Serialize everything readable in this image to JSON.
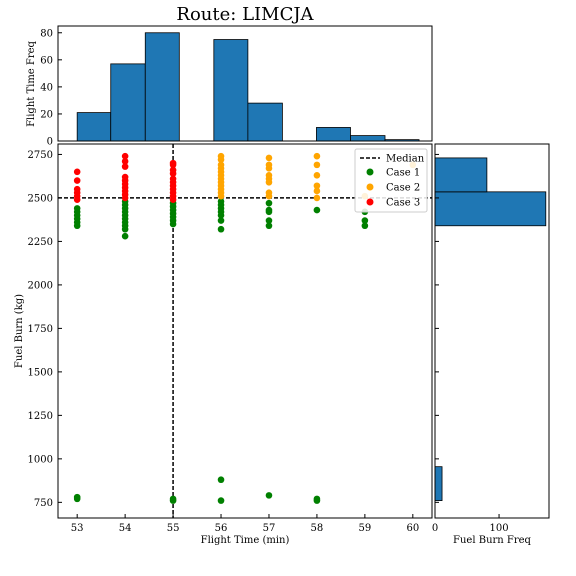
{
  "chart_data": [
    {
      "panel": "top-histogram",
      "type": "bar",
      "title": "Route: LIMCJA",
      "xlabel": "",
      "ylabel": "Flight Time Freq",
      "ylim": [
        0,
        85
      ],
      "yticks": [
        0,
        20,
        40,
        60,
        80
      ],
      "bar_color": "#1f77b4",
      "bins": [
        {
          "x0": 53.0,
          "x1": 53.7,
          "value": 21
        },
        {
          "x0": 53.7,
          "x1": 54.42,
          "value": 57
        },
        {
          "x0": 54.42,
          "x1": 55.13,
          "value": 80
        },
        {
          "x0": 55.13,
          "x1": 55.85,
          "value": 0
        },
        {
          "x0": 55.85,
          "x1": 56.56,
          "value": 75
        },
        {
          "x0": 56.56,
          "x1": 57.28,
          "value": 28
        },
        {
          "x0": 57.28,
          "x1": 57.99,
          "value": 0
        },
        {
          "x0": 57.99,
          "x1": 58.7,
          "value": 10
        },
        {
          "x0": 58.7,
          "x1": 59.42,
          "value": 4
        },
        {
          "x0": 59.42,
          "x1": 60.13,
          "value": 1
        }
      ]
    },
    {
      "panel": "main-scatter",
      "type": "scatter",
      "xlabel": "Flight Time (min)",
      "ylabel": "Fuel Burn (kg)",
      "xlim": [
        52.6,
        60.4
      ],
      "ylim": [
        660,
        2810
      ],
      "xticks": [
        53,
        54,
        55,
        56,
        57,
        58,
        59,
        60
      ],
      "yticks": [
        750,
        1000,
        1250,
        1500,
        1750,
        2000,
        2250,
        2500,
        2750
      ],
      "median_x": 55,
      "median_y": 2500,
      "legend_position": "top-right",
      "legend": [
        {
          "label": "Median",
          "kind": "line",
          "color": "#000000"
        },
        {
          "label": "Case 1",
          "kind": "marker",
          "color": "#008000"
        },
        {
          "label": "Case 2",
          "kind": "marker",
          "color": "#ffa500"
        },
        {
          "label": "Case 3",
          "kind": "marker",
          "color": "#ff0000"
        }
      ],
      "series": [
        {
          "name": "Case 1",
          "color": "#008000",
          "points": [
            [
              53,
              780
            ],
            [
              53,
              770
            ],
            [
              53,
              2340
            ],
            [
              53,
              2360
            ],
            [
              53,
              2380
            ],
            [
              53,
              2400
            ],
            [
              53,
              2420
            ],
            [
              53,
              2440
            ],
            [
              54,
              2280
            ],
            [
              54,
              2320
            ],
            [
              54,
              2340
            ],
            [
              54,
              2360
            ],
            [
              54,
              2380
            ],
            [
              54,
              2400
            ],
            [
              54,
              2420
            ],
            [
              54,
              2440
            ],
            [
              54,
              2460
            ],
            [
              54,
              2480
            ],
            [
              55,
              760
            ],
            [
              55,
              770
            ],
            [
              55,
              2350
            ],
            [
              55,
              2370
            ],
            [
              55,
              2390
            ],
            [
              55,
              2410
            ],
            [
              55,
              2430
            ],
            [
              55,
              2450
            ],
            [
              55,
              2470
            ],
            [
              56,
              880
            ],
            [
              56,
              760
            ],
            [
              56,
              2320
            ],
            [
              56,
              2370
            ],
            [
              56,
              2400
            ],
            [
              56,
              2420
            ],
            [
              56,
              2440
            ],
            [
              56,
              2460
            ],
            [
              56,
              2480
            ],
            [
              57,
              790
            ],
            [
              57,
              2340
            ],
            [
              57,
              2370
            ],
            [
              57,
              2420
            ],
            [
              57,
              2430
            ],
            [
              57,
              2470
            ],
            [
              58,
              770
            ],
            [
              58,
              760
            ],
            [
              58,
              2430
            ],
            [
              59,
              2340
            ],
            [
              59,
              2370
            ],
            [
              59,
              2420
            ]
          ]
        },
        {
          "name": "Case 2",
          "color": "#ffa500",
          "points": [
            [
              56,
              2510
            ],
            [
              56,
              2530
            ],
            [
              56,
              2550
            ],
            [
              56,
              2570
            ],
            [
              56,
              2590
            ],
            [
              56,
              2610
            ],
            [
              56,
              2630
            ],
            [
              56,
              2650
            ],
            [
              56,
              2670
            ],
            [
              56,
              2690
            ],
            [
              56,
              2720
            ],
            [
              56,
              2740
            ],
            [
              57,
              2510
            ],
            [
              57,
              2530
            ],
            [
              57,
              2590
            ],
            [
              57,
              2610
            ],
            [
              57,
              2630
            ],
            [
              57,
              2670
            ],
            [
              57,
              2690
            ],
            [
              57,
              2730
            ],
            [
              58,
              2500
            ],
            [
              58,
              2540
            ],
            [
              58,
              2570
            ],
            [
              58,
              2630
            ],
            [
              58,
              2690
            ],
            [
              58,
              2740
            ],
            [
              59,
              2510
            ],
            [
              60,
              2690
            ]
          ]
        },
        {
          "name": "Case 3",
          "color": "#ff0000",
          "points": [
            [
              53,
              2490
            ],
            [
              53,
              2510
            ],
            [
              53,
              2530
            ],
            [
              53,
              2550
            ],
            [
              53,
              2600
            ],
            [
              53,
              2650
            ],
            [
              54,
              2500
            ],
            [
              54,
              2520
            ],
            [
              54,
              2540
            ],
            [
              54,
              2560
            ],
            [
              54,
              2580
            ],
            [
              54,
              2600
            ],
            [
              54,
              2620
            ],
            [
              54,
              2680
            ],
            [
              54,
              2710
            ],
            [
              54,
              2740
            ],
            [
              55,
              2490
            ],
            [
              55,
              2510
            ],
            [
              55,
              2530
            ],
            [
              55,
              2550
            ],
            [
              55,
              2570
            ],
            [
              55,
              2590
            ],
            [
              55,
              2610
            ],
            [
              55,
              2640
            ],
            [
              55,
              2660
            ],
            [
              55,
              2690
            ],
            [
              55,
              2700
            ]
          ]
        }
      ]
    },
    {
      "panel": "right-histogram",
      "type": "bar",
      "orientation": "horizontal",
      "xlabel": "Fuel Burn Freq",
      "ylabel": "",
      "xlim": [
        0,
        178
      ],
      "xticks": [
        0,
        100
      ],
      "bar_color": "#1f77b4",
      "bins": [
        {
          "y0": 760,
          "y1": 955,
          "value": 11
        },
        {
          "y0": 2340,
          "y1": 2535,
          "value": 173
        },
        {
          "y0": 2535,
          "y1": 2730,
          "value": 81
        }
      ]
    }
  ]
}
